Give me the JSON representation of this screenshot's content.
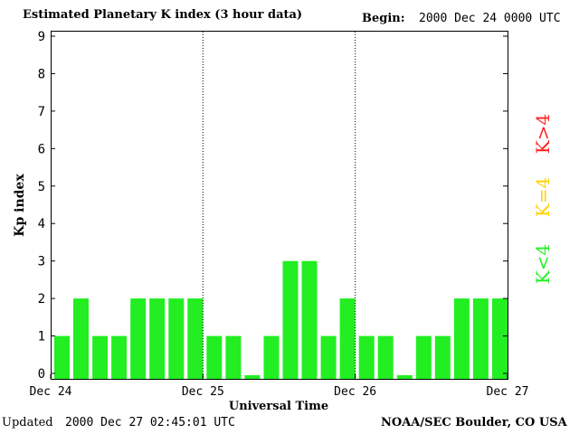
{
  "header": {
    "title": "Estimated Planetary K index (3 hour data)",
    "begin_label": "Begin:",
    "begin_value": "2000 Dec 24 0000 UTC"
  },
  "footer": {
    "updated_label": "Updated",
    "updated_value": "2000 Dec 27 02:45:01 UTC",
    "source": "NOAA/SEC Boulder, CO USA"
  },
  "legend": [
    {
      "label": "K>4",
      "color": "#ff2020"
    },
    {
      "label": "K=4",
      "color": "#ffd200"
    },
    {
      "label": "K<4",
      "color": "#22ee22"
    }
  ],
  "chart_data": {
    "type": "bar",
    "title": "Estimated Planetary K index (3 hour data)",
    "xlabel": "Universal Time",
    "ylabel": "Kp index",
    "ylim": [
      0,
      9
    ],
    "yticks": [
      "0",
      "1",
      "2",
      "3",
      "4",
      "5",
      "6",
      "7",
      "8",
      "9"
    ],
    "xticks": [
      "Dec 24",
      "Dec 25",
      "Dec 26",
      "Dec 27"
    ],
    "grid": "vertical dotted lines at day boundaries",
    "bar_color": "#22ee22",
    "values": [
      1,
      2,
      1,
      1,
      2,
      2,
      2,
      2,
      1,
      1,
      0,
      1,
      3,
      3,
      1,
      2,
      1,
      1,
      0,
      1,
      1,
      2,
      2,
      2
    ]
  }
}
